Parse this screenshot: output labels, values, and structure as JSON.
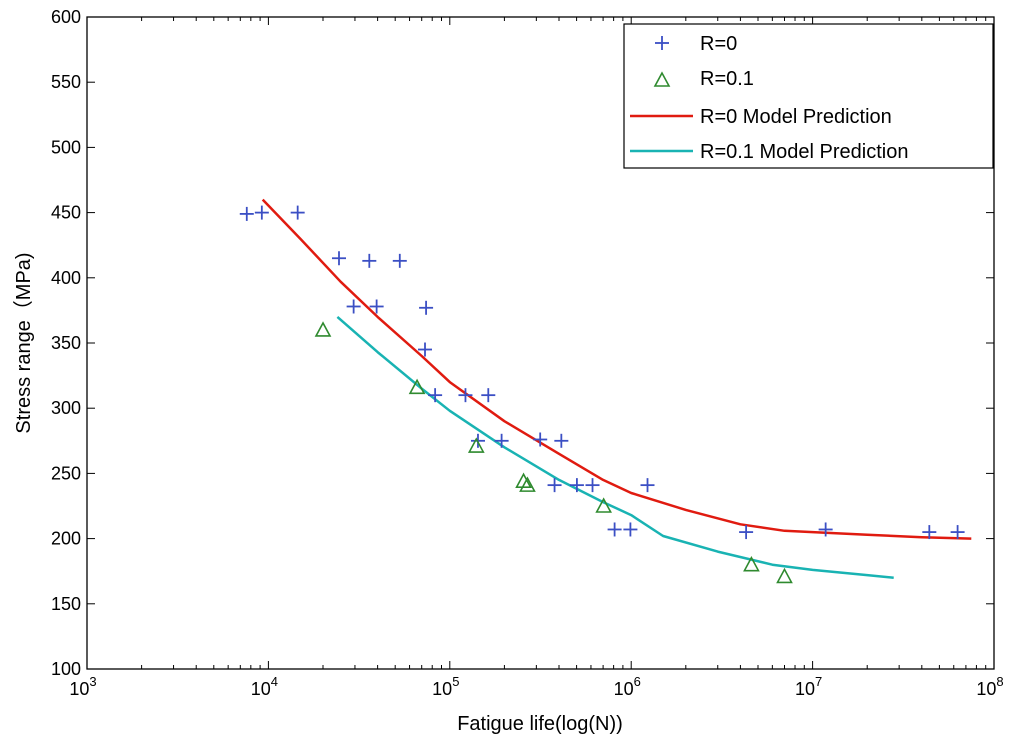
{
  "chart_data": {
    "type": "scatter",
    "title": "",
    "xlabel": "Fatigue life(log(N))",
    "ylabel": "Stress range（MPa)",
    "x_scale": "log",
    "xlim": [
      1000,
      100000000
    ],
    "ylim": [
      100,
      600
    ],
    "grid": false,
    "legend_position": "top-right",
    "x_ticks": [
      {
        "value": 1000,
        "base": "10",
        "exp": "3"
      },
      {
        "value": 10000,
        "base": "10",
        "exp": "4"
      },
      {
        "value": 100000,
        "base": "10",
        "exp": "5"
      },
      {
        "value": 1000000,
        "base": "10",
        "exp": "6"
      },
      {
        "value": 10000000,
        "base": "10",
        "exp": "7"
      },
      {
        "value": 100000000,
        "base": "10",
        "exp": "8"
      }
    ],
    "y_ticks": [
      100,
      150,
      200,
      250,
      300,
      350,
      400,
      450,
      500,
      550,
      600
    ],
    "series": [
      {
        "name": "R=0",
        "kind": "plus-markers",
        "color": "#3b4fc4",
        "points": [
          [
            7600,
            449
          ],
          [
            9200,
            450
          ],
          [
            14500,
            450
          ],
          [
            24500,
            415
          ],
          [
            36000,
            413
          ],
          [
            53000,
            413
          ],
          [
            29500,
            378
          ],
          [
            39500,
            378
          ],
          [
            74000,
            377
          ],
          [
            73000,
            345
          ],
          [
            83000,
            310
          ],
          [
            122000,
            310
          ],
          [
            163000,
            310
          ],
          [
            143000,
            275
          ],
          [
            193000,
            275
          ],
          [
            315000,
            276
          ],
          [
            412000,
            275
          ],
          [
            378000,
            241
          ],
          [
            502000,
            241
          ],
          [
            612000,
            241
          ],
          [
            1230000,
            241
          ],
          [
            810000,
            207
          ],
          [
            990000,
            207
          ],
          [
            4300000,
            205
          ],
          [
            11800000,
            207
          ],
          [
            44000000,
            205
          ],
          [
            63000000,
            205
          ]
        ]
      },
      {
        "name": "R=0.1",
        "kind": "triangle-markers",
        "color": "#2f8a2f",
        "points": [
          [
            20000,
            360
          ],
          [
            66000,
            316
          ],
          [
            140000,
            271
          ],
          [
            255000,
            244
          ],
          [
            268000,
            241
          ],
          [
            705000,
            225
          ],
          [
            4600000,
            180
          ],
          [
            7000000,
            171
          ]
        ]
      },
      {
        "name": "R=0 Model Prediction",
        "kind": "line",
        "color": "#e01b10",
        "points": [
          [
            9300,
            460
          ],
          [
            15000,
            430
          ],
          [
            25000,
            397
          ],
          [
            40000,
            370
          ],
          [
            70000,
            340
          ],
          [
            100000,
            320
          ],
          [
            200000,
            290
          ],
          [
            400000,
            265
          ],
          [
            700000,
            245
          ],
          [
            1000000,
            235
          ],
          [
            2000000,
            222
          ],
          [
            4000000,
            211
          ],
          [
            7000000,
            206
          ],
          [
            10000000,
            205
          ],
          [
            20000000,
            203
          ],
          [
            40000000,
            201
          ],
          [
            75000000,
            200
          ]
        ]
      },
      {
        "name": "R=0.1 Model Prediction",
        "kind": "line",
        "color": "#19b3b3",
        "points": [
          [
            24000,
            370
          ],
          [
            40000,
            343
          ],
          [
            70000,
            315
          ],
          [
            100000,
            298
          ],
          [
            200000,
            270
          ],
          [
            400000,
            245
          ],
          [
            700000,
            228
          ],
          [
            1000000,
            218
          ],
          [
            1500000,
            202
          ],
          [
            3000000,
            190
          ],
          [
            6000000,
            180
          ],
          [
            10000000,
            176
          ],
          [
            20000000,
            172
          ],
          [
            28000000,
            170
          ]
        ]
      }
    ]
  }
}
